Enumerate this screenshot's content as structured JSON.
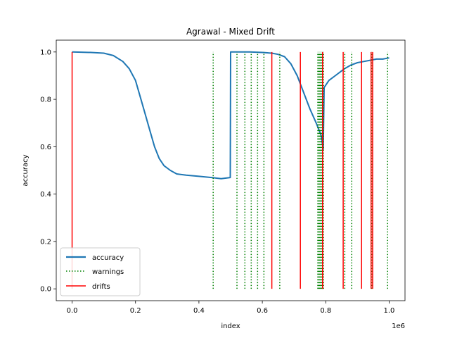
{
  "chart_data": {
    "type": "line",
    "title": "Agrawal - Mixed Drift",
    "xlabel": "index",
    "ylabel": "accuracy",
    "x_offset_label": "1e6",
    "xlim": [
      -50000,
      1050000
    ],
    "ylim": [
      -0.05,
      1.05
    ],
    "x_ticks": [
      0,
      200000,
      400000,
      600000,
      800000,
      1000000
    ],
    "x_tick_labels": [
      "0.0",
      "0.2",
      "0.4",
      "0.6",
      "0.8",
      "1.0"
    ],
    "y_ticks": [
      0.0,
      0.2,
      0.4,
      0.6,
      0.8,
      1.0
    ],
    "y_tick_labels": [
      "0.0",
      "0.2",
      "0.4",
      "0.6",
      "0.8",
      "1.0"
    ],
    "legend_position": "lower left",
    "series": [
      {
        "name": "accuracy",
        "color": "#1f77b4",
        "x": [
          0,
          60000,
          100000,
          130000,
          160000,
          180000,
          200000,
          215000,
          230000,
          245000,
          260000,
          275000,
          290000,
          310000,
          330000,
          360000,
          400000,
          440000,
          470000,
          499000,
          500000,
          560000,
          600000,
          630000,
          650000,
          670000,
          690000,
          710000,
          730000,
          750000,
          770000,
          785000,
          792000,
          795000,
          810000,
          830000,
          850000,
          860000,
          880000,
          900000,
          920000,
          940000,
          960000,
          980000,
          1000000
        ],
        "y": [
          1.0,
          0.998,
          0.995,
          0.985,
          0.96,
          0.93,
          0.88,
          0.81,
          0.74,
          0.67,
          0.6,
          0.55,
          0.52,
          0.5,
          0.485,
          0.48,
          0.475,
          0.47,
          0.465,
          0.47,
          1.0,
          1.0,
          0.998,
          0.995,
          0.99,
          0.98,
          0.95,
          0.9,
          0.83,
          0.76,
          0.7,
          0.65,
          0.59,
          0.85,
          0.88,
          0.9,
          0.92,
          0.93,
          0.945,
          0.955,
          0.96,
          0.965,
          0.97,
          0.97,
          0.975
        ]
      }
    ],
    "warnings": {
      "name": "warnings",
      "color": "#008000",
      "x": [
        445000,
        520000,
        545000,
        565000,
        585000,
        605000,
        655000,
        775000,
        778000,
        781000,
        784000,
        787000,
        790000,
        793000,
        860000,
        882000,
        945000,
        995000
      ]
    },
    "drifts": {
      "name": "drifts",
      "color": "#ff0000",
      "x": [
        0,
        630000,
        720000,
        790000,
        855000,
        913000,
        943000,
        948000
      ]
    }
  }
}
